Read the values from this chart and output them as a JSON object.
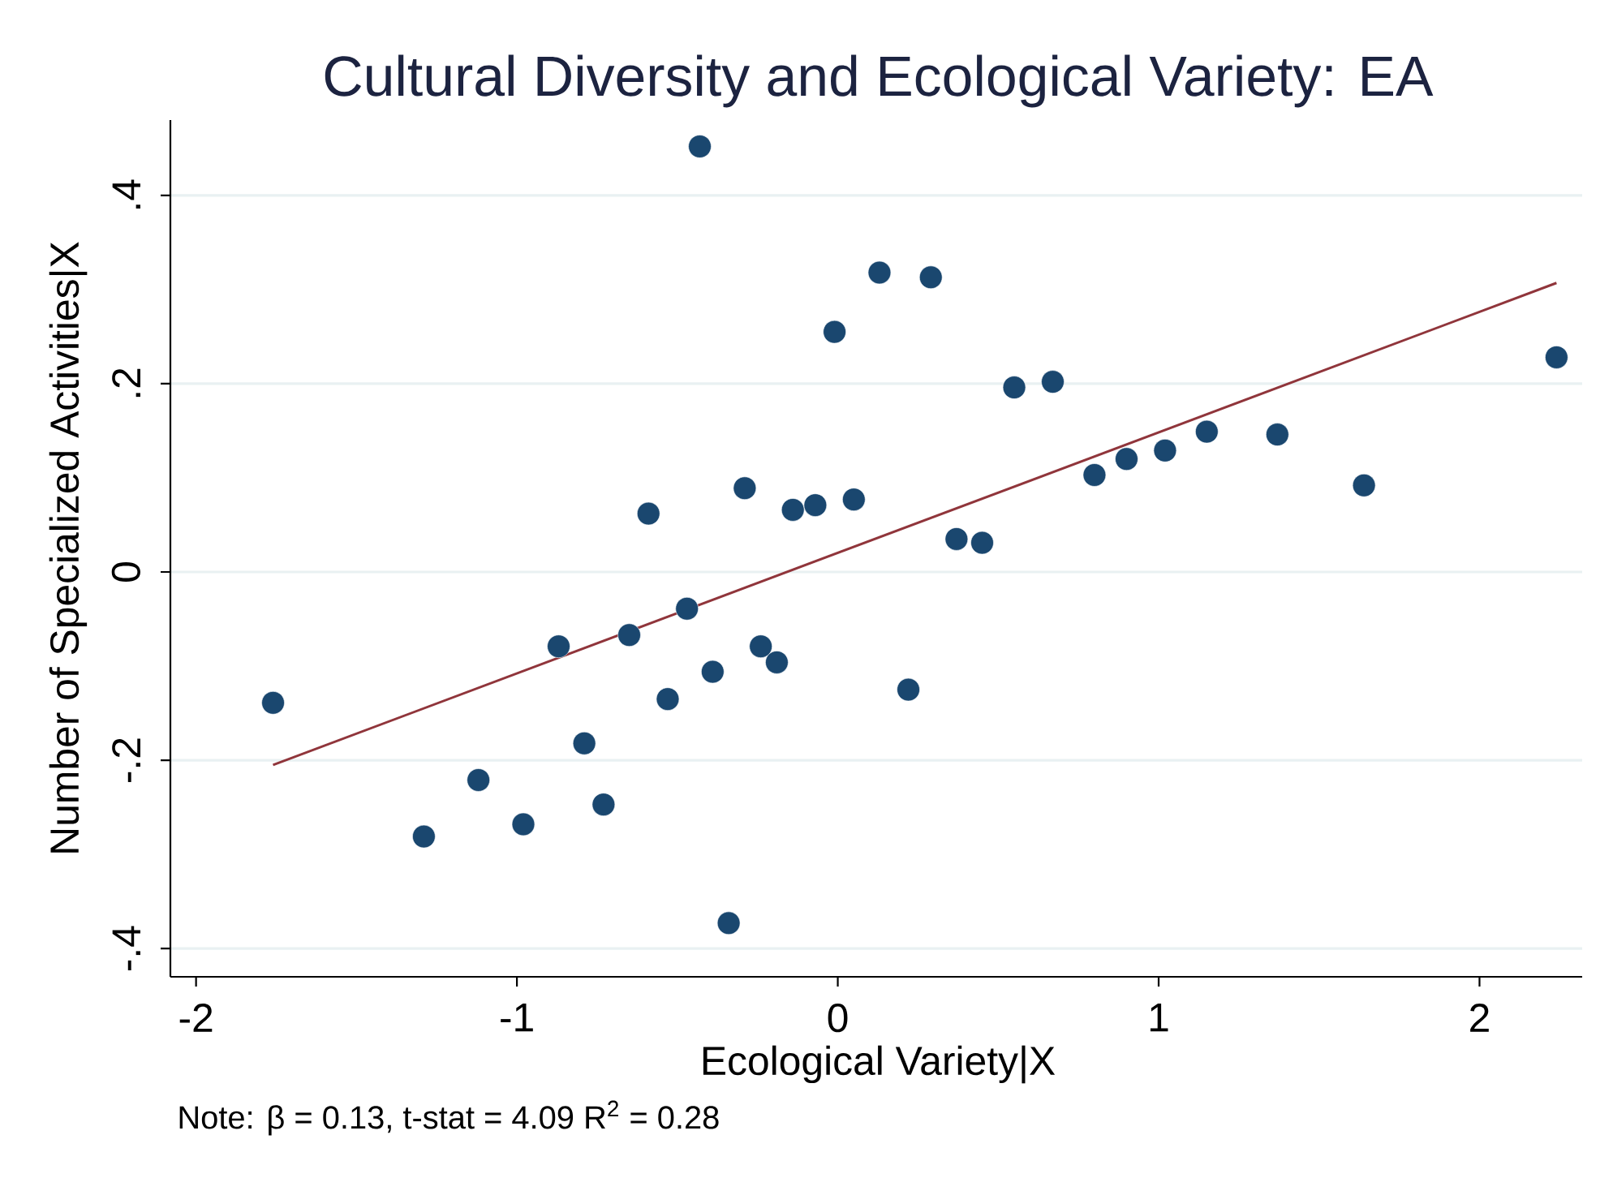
{
  "chart_data": {
    "type": "scatter",
    "title": "Cultural Diversity and Ecological Variety: EA",
    "xlabel": "Ecological Variety|X",
    "ylabel": "Number of Specialized Activities|X",
    "annotations": [
      "Note: β = 0.13, t-stat = 4.09 R$^{2}$ = 0.28"
    ],
    "xlim": [
      -2.08,
      2.32
    ],
    "ylim": [
      -0.43,
      0.48
    ],
    "xticks": [
      -2,
      -1,
      0,
      1,
      2
    ],
    "yticks": [
      {
        "value": -0.4,
        "label": "-.4"
      },
      {
        "value": -0.2,
        "label": "-.2"
      },
      {
        "value": 0,
        "label": "0"
      },
      {
        "value": 0.2,
        "label": ".2"
      },
      {
        "value": 0.4,
        "label": ".4"
      }
    ],
    "grid": "y",
    "series": [
      {
        "color": "#1a476f",
        "marker": "circle",
        "x": [
          -1.76,
          -1.29,
          -1.12,
          -0.98,
          -0.87,
          -0.79,
          -0.73,
          -0.65,
          -0.59,
          -0.53,
          -0.47,
          -0.43,
          -0.39,
          -0.34,
          -0.29,
          -0.24,
          -0.19,
          -0.14,
          -0.07,
          -0.01,
          0.05,
          0.13,
          0.22,
          0.29,
          0.37,
          0.45,
          0.55,
          0.67,
          0.8,
          0.9,
          1.02,
          1.15,
          1.37,
          1.64,
          2.24
        ],
        "values": [
          -0.139,
          -0.281,
          -0.221,
          -0.268,
          -0.079,
          -0.182,
          -0.247,
          -0.067,
          0.062,
          -0.135,
          -0.039,
          0.452,
          -0.106,
          -0.373,
          0.089,
          -0.079,
          -0.096,
          0.066,
          0.071,
          0.255,
          0.077,
          0.318,
          -0.125,
          0.313,
          0.035,
          0.031,
          0.196,
          0.202,
          0.103,
          0.12,
          0.129,
          0.149,
          0.146,
          0.092,
          0.228
        ]
      },
      {
        "type": "line",
        "color": "#90353b",
        "x": [
          -1.76,
          2.24
        ],
        "values": [
          -0.205,
          0.307
        ]
      }
    ]
  }
}
